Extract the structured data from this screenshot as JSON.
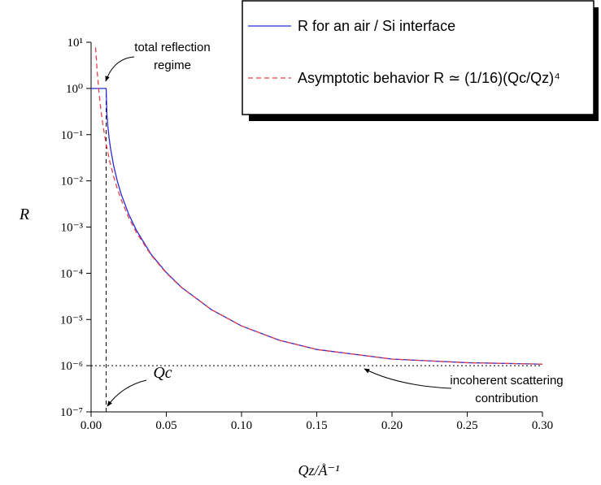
{
  "chart_data": {
    "type": "line",
    "xlabel": "Qz/Å⁻¹",
    "ylabel": "R",
    "log_y": true,
    "xlim": [
      0,
      0.3
    ],
    "xticks": [
      {
        "value": 0,
        "label": "0.00"
      },
      {
        "value": 0.05,
        "label": "0.05"
      },
      {
        "value": 0.1,
        "label": "0.10"
      },
      {
        "value": 0.15,
        "label": "0.15"
      },
      {
        "value": 0.2,
        "label": "0.20"
      },
      {
        "value": 0.25,
        "label": "0.25"
      },
      {
        "value": 0.3,
        "label": "0.30"
      }
    ],
    "ylim": [
      1e-07,
      10
    ],
    "yticks": [
      {
        "value": 10,
        "label": "10¹"
      },
      {
        "value": 1,
        "label": "10⁰"
      },
      {
        "value": 0.1,
        "label": "10⁻¹"
      },
      {
        "value": 0.01,
        "label": "10⁻²"
      },
      {
        "value": 0.001,
        "label": "10⁻³"
      },
      {
        "value": 0.0001,
        "label": "10⁻⁴"
      },
      {
        "value": 1e-05,
        "label": "10⁻⁵"
      },
      {
        "value": 1e-06,
        "label": "10⁻⁶"
      },
      {
        "value": 1e-07,
        "label": "10⁻⁷"
      }
    ],
    "vline": 0.01,
    "hline": 1e-06,
    "annotations": {
      "total_reflection": [
        "total reflection",
        "regime"
      ],
      "incoherent": [
        "incoherent scattering",
        "contribution"
      ],
      "qc": "Qc"
    },
    "series": [
      {
        "name": "R for an air / Si interface",
        "color": "#2b2bd6",
        "dash": false,
        "x": [
          0,
          0.01,
          0.01,
          0.0105,
          0.011,
          0.012,
          0.013,
          0.015,
          0.0175,
          0.02,
          0.025,
          0.03,
          0.04,
          0.05,
          0.06,
          0.08,
          0.1,
          0.125,
          0.15,
          0.2,
          0.25,
          0.3
        ],
        "values": [
          1,
          1,
          1,
          0.284,
          0.17,
          0.083,
          0.0487,
          0.0213,
          0.00971,
          0.005155,
          0.001897,
          0.000867,
          0.000254,
          0.000104,
          5e-05,
          1.63e-05,
          7.25e-06,
          3.56e-06,
          2.24e-06,
          1.39e-06,
          1.16e-06,
          1.08e-06
        ]
      },
      {
        "name": "Asymptotic behavior   R ≃ (1/16)(Qc/Qz)⁴",
        "color": "#e8404a",
        "dash": true,
        "x": [
          0.003,
          0.004,
          0.005,
          0.006,
          0.007,
          0.008,
          0.01,
          0.0125,
          0.015,
          0.0175,
          0.02,
          0.025,
          0.03,
          0.04,
          0.05,
          0.06,
          0.08,
          0.1,
          0.125,
          0.15,
          0.2,
          0.25,
          0.3
        ],
        "values": [
          7.72,
          2.44,
          1.0,
          0.482,
          0.26,
          0.1526,
          0.0625,
          0.0256,
          0.01235,
          0.00666,
          0.003907,
          0.0016,
          0.000772,
          0.000245,
          0.000101,
          4.92e-05,
          1.63e-05,
          7.25e-06,
          3.56e-06,
          2.24e-06,
          1.39e-06,
          1.16e-06,
          1.08e-06
        ]
      }
    ]
  }
}
